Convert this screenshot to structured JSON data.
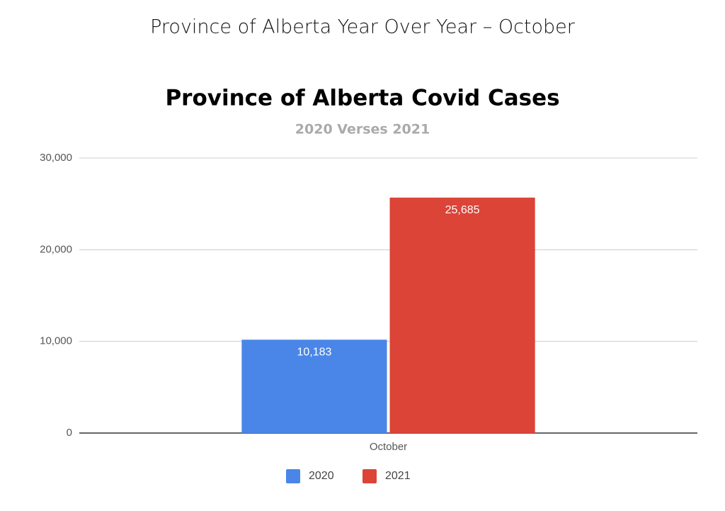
{
  "page_title": "Province of Alberta Year Over Year – October",
  "chart_data": {
    "type": "bar",
    "title": "Province of Alberta Covid Cases",
    "subtitle": "2020 Verses 2021",
    "categories": [
      "October"
    ],
    "series": [
      {
        "name": "2020",
        "color": "#4a86e8",
        "values": [
          10183
        ],
        "value_labels": [
          "10,183"
        ]
      },
      {
        "name": "2021",
        "color": "#db4437",
        "values": [
          25685
        ],
        "value_labels": [
          "25,685"
        ]
      }
    ],
    "ylim": [
      0,
      30000
    ],
    "yticks": [
      0,
      {
        "value": 10000,
        "label": "10,000"
      },
      {
        "value": 20000,
        "label": "20,000"
      },
      {
        "value": 30000,
        "label": "30,000"
      }
    ],
    "grid": true,
    "legend": "bottom"
  }
}
